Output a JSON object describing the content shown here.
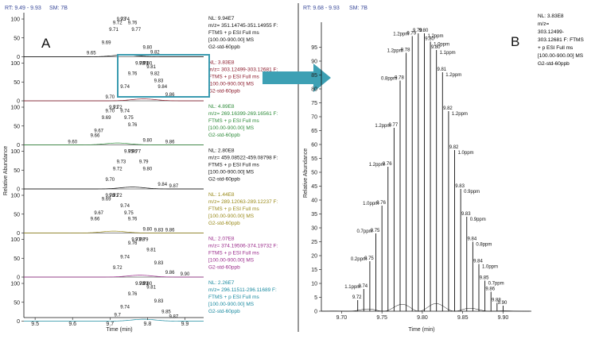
{
  "panel_a": {
    "header": {
      "rt": "RT: 9.49 - 9.93",
      "sm": "SM: 7B"
    },
    "letter": "A",
    "ylabel": "Relative Abundance",
    "xlabel": "Time (min)",
    "yticks": [
      "0",
      "50",
      "100"
    ],
    "xticks": [
      "9.5",
      "9.6",
      "9.7",
      "9.8",
      "9.9"
    ]
  },
  "panel_b": {
    "header": {
      "rt": "RT: 9.68 - 9.93",
      "sm": "SM: 7B"
    },
    "letter": "B",
    "ylabel": "Relative Abundance",
    "xlabel": "Time (min)",
    "yticks": [
      "0",
      "5",
      "10",
      "15",
      "20",
      "25",
      "30",
      "35",
      "40",
      "45",
      "50",
      "55",
      "60",
      "65",
      "70",
      "75",
      "80",
      "85",
      "90",
      "95"
    ],
    "xticks": [
      "9.70",
      "9.75",
      "9.80",
      "9.85",
      "9.90"
    ],
    "annotation": [
      "NL: 3.83E8",
      "m/z=",
      "303.12499-",
      "303.12681 F: FTMS",
      "+ p ESI Full ms",
      "[100.00-900.00]  MS",
      "G2-std-60ppb"
    ]
  },
  "chart_data": [
    {
      "type": "line",
      "title": "",
      "xlabel": "Time (min)",
      "ylabel": "Relative Abundance",
      "xlim": [
        9.47,
        9.95
      ],
      "ylim": [
        0,
        100
      ],
      "traces": [
        {
          "color": "#111111",
          "peak_rt": 9.74,
          "labels": [
            [
              9.65,
              "9.65"
            ],
            [
              9.69,
              "9.69"
            ],
            [
              9.71,
              "9.71"
            ],
            [
              9.72,
              "9.72"
            ],
            [
              9.73,
              "9.73"
            ],
            [
              9.74,
              "9.74"
            ],
            [
              9.76,
              "9.76"
            ],
            [
              9.77,
              "9.77"
            ],
            [
              9.8,
              "9.80"
            ],
            [
              9.82,
              "9.82"
            ]
          ],
          "annotation": [
            "NL: 9.94E7",
            "m/z= 351.14745-351.14955 F:",
            "FTMS + p ESI Full ms",
            "[100.00-900.00] MS",
            "G2-std-60ppb"
          ]
        },
        {
          "color": "#8b1a2b",
          "peak_rt": 9.79,
          "labels": [
            [
              9.7,
              "9.70"
            ],
            [
              9.74,
              "9.74"
            ],
            [
              9.76,
              "9.76"
            ],
            [
              9.78,
              "9.78"
            ],
            [
              9.79,
              "9.79"
            ],
            [
              9.8,
              "9.80"
            ],
            [
              9.81,
              "9.81"
            ],
            [
              9.82,
              "9.82"
            ],
            [
              9.83,
              "9.83"
            ],
            [
              9.84,
              "9.84"
            ],
            [
              9.86,
              "9.86"
            ]
          ],
          "annotation": [
            "NL: 3.83E8",
            "m/z= 303.12499-303.12681 F:",
            "FTMS + p ESI Full ms",
            "[100.00-900.00] MS",
            "G2-std-60ppb"
          ]
        },
        {
          "color": "#2e8b3a",
          "peak_rt": 9.72,
          "labels": [
            [
              9.6,
              "9.60"
            ],
            [
              9.66,
              "9.66"
            ],
            [
              9.67,
              "9.67"
            ],
            [
              9.69,
              "9.69"
            ],
            [
              9.7,
              "9.70"
            ],
            [
              9.71,
              "9.71"
            ],
            [
              9.72,
              "9.72"
            ],
            [
              9.74,
              "9.74"
            ],
            [
              9.75,
              "9.75"
            ],
            [
              9.76,
              "9.76"
            ],
            [
              9.8,
              "9.80"
            ],
            [
              9.86,
              "9.86"
            ]
          ],
          "annotation": [
            "NL: 4.89E8",
            "m/z= 269.16399-269.16561 F:",
            "FTMS + p ESI Full ms",
            "[100.00-900.00] MS",
            "G2-std-60ppb"
          ]
        },
        {
          "color": "#111111",
          "peak_rt": 9.76,
          "labels": [
            [
              9.7,
              "9.70"
            ],
            [
              9.72,
              "9.72"
            ],
            [
              9.73,
              "9.73"
            ],
            [
              9.75,
              "9.75"
            ],
            [
              9.76,
              "9.76"
            ],
            [
              9.77,
              "9.77"
            ],
            [
              9.79,
              "9.79"
            ],
            [
              9.8,
              "9.80"
            ],
            [
              9.84,
              "9.84"
            ],
            [
              9.87,
              "9.87"
            ]
          ],
          "annotation": [
            "NL: 2.80E8",
            "m/z= 459.08522-459.08798 F:",
            "FTMS + p ESI Full ms",
            "[100.00-900.00] MS",
            "G2-std-60ppb"
          ]
        },
        {
          "color": "#9a8a1a",
          "peak_rt": 9.71,
          "labels": [
            [
              9.66,
              "9.66"
            ],
            [
              9.67,
              "9.67"
            ],
            [
              9.69,
              "9.69"
            ],
            [
              9.7,
              "9.70"
            ],
            [
              9.71,
              "9.71"
            ],
            [
              9.72,
              "9.72"
            ],
            [
              9.74,
              "9.74"
            ],
            [
              9.75,
              "9.75"
            ],
            [
              9.76,
              "9.76"
            ],
            [
              9.8,
              "9.80"
            ],
            [
              9.83,
              "9.83"
            ],
            [
              9.86,
              "9.86"
            ]
          ],
          "annotation": [
            "NL: 1.44E8",
            "m/z= 289.12063-289.12237 F:",
            "FTMS + p ESI Full ms",
            "[100.00-900.00] MS",
            "G2-std-60ppb"
          ]
        },
        {
          "color": "#9a2a8a",
          "peak_rt": 9.78,
          "labels": [
            [
              9.72,
              "9.72"
            ],
            [
              9.74,
              "9.74"
            ],
            [
              9.76,
              "9.76"
            ],
            [
              9.77,
              "9.77"
            ],
            [
              9.78,
              "9.78"
            ],
            [
              9.79,
              "9.79"
            ],
            [
              9.81,
              "9.81"
            ],
            [
              9.83,
              "9.83"
            ],
            [
              9.86,
              "9.86"
            ],
            [
              9.9,
              "9.90"
            ]
          ],
          "annotation": [
            "NL: 2.07E8",
            "m/z= 374.19506-374.19732 F:",
            "FTMS + p ESI Full ms",
            "[100.00-900.00] MS",
            "G2-std-60ppb"
          ]
        },
        {
          "color": "#1a8aa0",
          "peak_rt": 9.79,
          "labels": [
            [
              9.72,
              "9.7"
            ],
            [
              9.74,
              "9.74"
            ],
            [
              9.76,
              "9.76"
            ],
            [
              9.78,
              "9.78"
            ],
            [
              9.79,
              "9.79"
            ],
            [
              9.8,
              "9.80"
            ],
            [
              9.81,
              "9.81"
            ],
            [
              9.83,
              "9.83"
            ],
            [
              9.85,
              "9.85"
            ],
            [
              9.87,
              "9.87"
            ]
          ],
          "annotation": [
            "NL: 2.26E7",
            "m/z= 296.11511-296.11689 F:",
            "FTMS + p ESI Full ms",
            "[100.00-900.00] MS",
            "G2-std-60ppb"
          ]
        }
      ]
    },
    {
      "type": "bar",
      "title": "",
      "xlabel": "Time (min)",
      "ylabel": "Relative Abundance",
      "xlim": [
        9.675,
        9.935
      ],
      "ylim": [
        0,
        100
      ],
      "peaks": [
        {
          "rt": 9.72,
          "value": 4,
          "label": "9.72",
          "ppm": ""
        },
        {
          "rt": 9.74,
          "value": 8,
          "label": "9.74",
          "ppm": "1.1ppm"
        },
        {
          "rt": 9.75,
          "value": 18,
          "label": "9.75",
          "ppm": "0.2ppm"
        },
        {
          "rt": 9.75,
          "value": 28,
          "label": "9.75",
          "ppm": "0.7ppm"
        },
        {
          "rt": 9.76,
          "value": 38,
          "label": "9.76",
          "ppm": "1.0ppm"
        },
        {
          "rt": 9.76,
          "value": 52,
          "label": "9.76",
          "ppm": "1.2ppm"
        },
        {
          "rt": 9.77,
          "value": 66,
          "label": "9.77",
          "ppm": "1.2ppm"
        },
        {
          "rt": 9.78,
          "value": 83,
          "label": "9.78",
          "ppm": "0.8ppm"
        },
        {
          "rt": 9.78,
          "value": 93,
          "label": "9.78",
          "ppm": "1.2ppm"
        },
        {
          "rt": 9.79,
          "value": 99,
          "label": "9.79",
          "ppm": "1.2ppm"
        },
        {
          "rt": 9.79,
          "value": 100,
          "label": "9.79",
          "ppm": ""
        },
        {
          "rt": 9.8,
          "value": 100,
          "label": "9.80",
          "ppm": "1.2ppm"
        },
        {
          "rt": 9.8,
          "value": 97,
          "label": "9.80",
          "ppm": "1.0ppm"
        },
        {
          "rt": 9.8,
          "value": 94,
          "label": "9.80",
          "ppm": "1.1ppm"
        },
        {
          "rt": 9.81,
          "value": 86,
          "label": "9.81",
          "ppm": "1.2ppm"
        },
        {
          "rt": 9.82,
          "value": 72,
          "label": "9.82",
          "ppm": "1.2ppm"
        },
        {
          "rt": 9.82,
          "value": 58,
          "label": "9.82",
          "ppm": "1.0ppm"
        },
        {
          "rt": 9.83,
          "value": 44,
          "label": "9.83",
          "ppm": "0.9ppm"
        },
        {
          "rt": 9.83,
          "value": 34,
          "label": "9.83",
          "ppm": "0.9ppm"
        },
        {
          "rt": 9.84,
          "value": 25,
          "label": "9.84",
          "ppm": "0.8ppm"
        },
        {
          "rt": 9.84,
          "value": 17,
          "label": "9.84",
          "ppm": "1.0ppm"
        },
        {
          "rt": 9.85,
          "value": 11,
          "label": "9.85",
          "ppm": "0.7ppm"
        },
        {
          "rt": 9.86,
          "value": 7,
          "label": "9.86",
          "ppm": ""
        },
        {
          "rt": 9.88,
          "value": 3,
          "label": "9.88",
          "ppm": ""
        },
        {
          "rt": 9.9,
          "value": 2,
          "label": "9.90",
          "ppm": ""
        }
      ]
    }
  ]
}
